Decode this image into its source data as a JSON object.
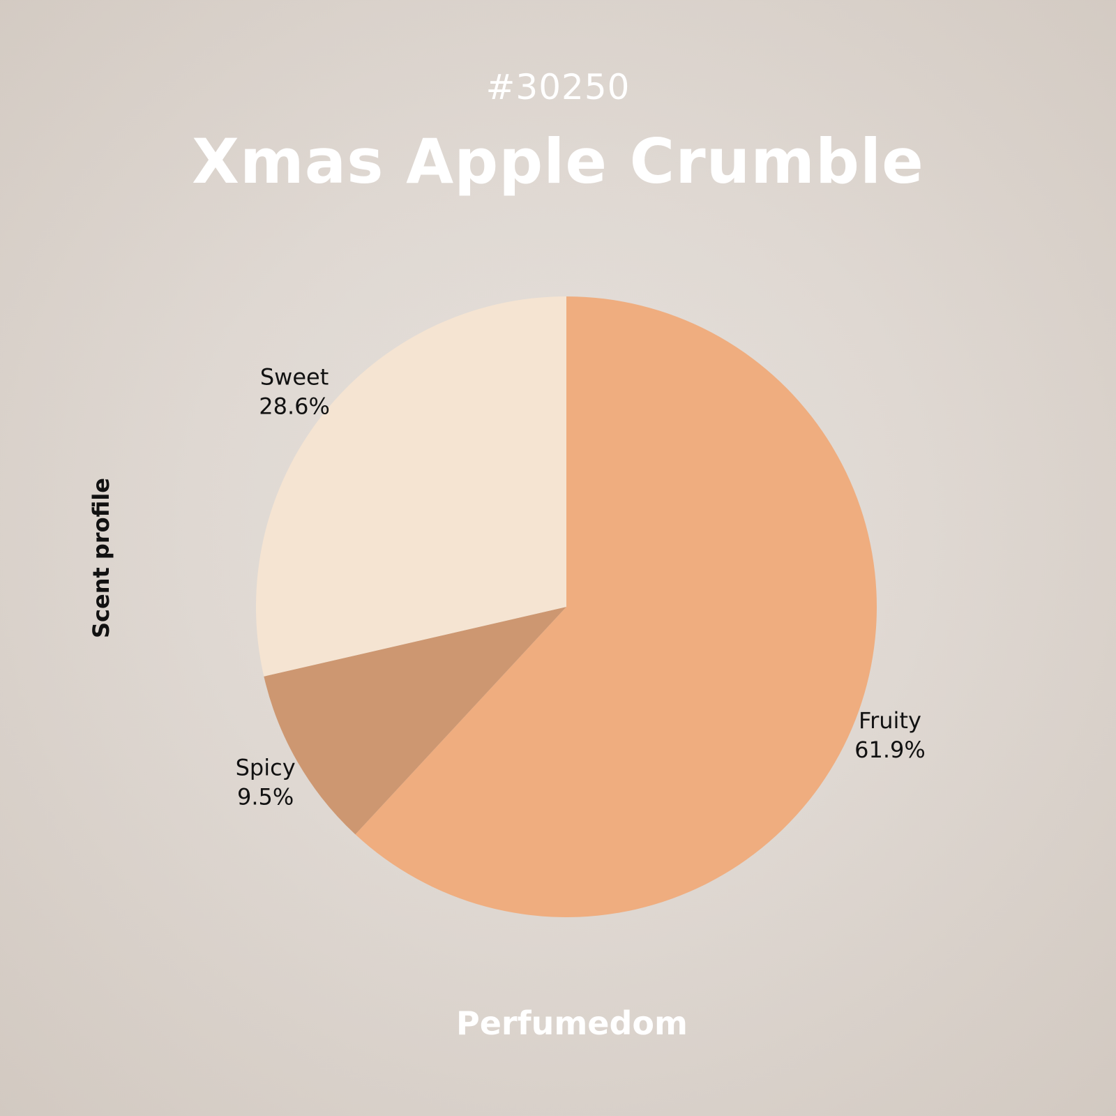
{
  "header": {
    "product_id": "#30250",
    "title": "Xmas Apple Crumble"
  },
  "side_label": "Scent profile",
  "footer": {
    "brand": "Perfumedom"
  },
  "chart_data": {
    "type": "pie",
    "categories": [
      "Fruity",
      "Spicy",
      "Sweet"
    ],
    "values": [
      61.9,
      9.5,
      28.6
    ],
    "labels": [
      "61.9%",
      "9.5%",
      "28.6%"
    ],
    "colors": [
      "#efad7f",
      "#cd9771",
      "#f5e4d2"
    ],
    "start_angle": "12 o'clock",
    "direction": "clockwise"
  }
}
